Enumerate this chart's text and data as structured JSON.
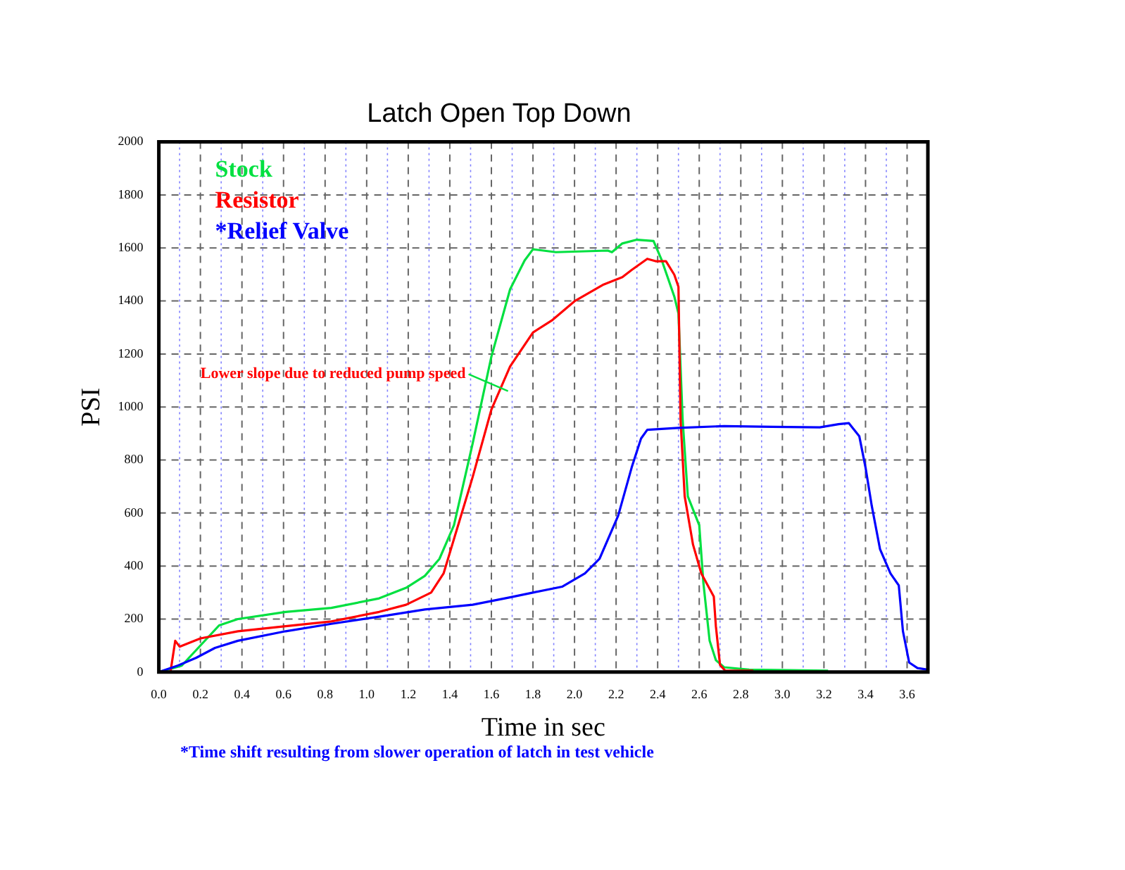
{
  "chart_data": {
    "type": "line",
    "title": "Latch Open Top Down",
    "xlabel": "Time in sec",
    "ylabel": "PSI",
    "annotations": [
      {
        "text": "Lower slope due to reduced pump speed",
        "x": 1.68,
        "y": 1060
      },
      "*Time shift resulting from slower operation of latch in test vehicle"
    ],
    "legend": "top left",
    "grid": true,
    "marker": "none",
    "line_style": "solid",
    "xlim": [
      0,
      3.7
    ],
    "ylim": [
      0,
      2000
    ],
    "xticks": [
      {
        "value": 0,
        "label": "0.0"
      },
      {
        "value": 0.1,
        "label": null
      },
      0.2,
      {
        "value": 0.3,
        "label": null
      },
      0.4,
      {
        "value": 0.5,
        "label": null
      },
      0.6,
      {
        "value": 0.7,
        "label": null
      },
      0.8,
      {
        "value": 0.9,
        "label": null
      },
      {
        "value": 1,
        "label": "1.0"
      },
      {
        "value": 1.1,
        "label": null
      },
      1.2,
      {
        "value": 1.3,
        "label": null
      },
      1.4,
      {
        "value": 1.5,
        "label": null
      },
      1.6,
      {
        "value": 1.7,
        "label": null
      },
      1.8,
      {
        "value": 1.9,
        "label": null
      },
      {
        "value": 2,
        "label": "2.0"
      },
      {
        "value": 2.1,
        "label": null
      },
      2.2,
      {
        "value": 2.3,
        "label": null
      },
      2.4,
      {
        "value": 2.5,
        "label": null
      },
      2.6,
      {
        "value": 2.7,
        "label": null
      },
      2.8,
      {
        "value": 2.9,
        "label": null
      },
      {
        "value": 3,
        "label": "3.0"
      },
      {
        "value": 3.1,
        "label": null
      },
      3.2,
      {
        "value": 3.3,
        "label": null
      },
      3.4,
      {
        "value": 3.5,
        "label": null
      },
      3.6
    ],
    "yticks": [
      0,
      200,
      400,
      600,
      800,
      1000,
      1200,
      1400,
      1600,
      1800,
      2000
    ],
    "series": [
      {
        "name": "Stock",
        "color": "#00e040",
        "x": [
          0,
          0.11,
          0.29,
          0.38,
          0.61,
          0.83,
          1.06,
          1.19,
          1.28,
          1.35,
          1.42,
          1.51,
          1.6,
          1.69,
          1.76,
          1.8,
          1.91,
          2.16,
          2.18,
          2.23,
          2.3,
          2.38,
          2.42,
          2.48,
          2.5,
          2.52,
          2.545,
          2.6,
          2.62,
          2.65,
          2.68,
          2.72,
          2.84,
          3.22
        ],
        "values": [
          0,
          24,
          176,
          200,
          227,
          242,
          278,
          318,
          363,
          427,
          554,
          863,
          1190,
          1444,
          1553,
          1595,
          1584,
          1590,
          1584,
          1617,
          1631,
          1626,
          1553,
          1417,
          1353,
          954,
          663,
          554,
          336,
          118,
          45,
          18,
          9,
          5
        ]
      },
      {
        "name": "Resistor",
        "color": "#ff0000",
        "x": [
          0,
          0.056,
          0.079,
          0.1,
          0.2,
          0.38,
          0.61,
          0.83,
          1.06,
          1.19,
          1.31,
          1.37,
          1.44,
          1.51,
          1.6,
          1.69,
          1.8,
          1.89,
          2.0,
          2.14,
          2.23,
          2.275,
          2.35,
          2.39,
          2.44,
          2.48,
          2.5,
          2.51,
          2.53,
          2.57,
          2.61,
          2.67,
          2.68,
          2.7,
          2.725,
          2.86
        ],
        "values": [
          0,
          0,
          118,
          96,
          127,
          154,
          173,
          191,
          227,
          254,
          300,
          372,
          554,
          736,
          990,
          1153,
          1281,
          1326,
          1399,
          1462,
          1490,
          1517,
          1559,
          1550,
          1550,
          1499,
          1453,
          954,
          663,
          481,
          372,
          285,
          173,
          27,
          5,
          5
        ]
      },
      {
        "name": "*Relief Valve",
        "color": "#0000ff",
        "x": [
          0,
          0.09,
          0.18,
          0.27,
          0.38,
          0.61,
          0.83,
          1.06,
          1.28,
          1.51,
          1.69,
          1.8,
          1.94,
          2.05,
          2.12,
          2.21,
          2.275,
          2.32,
          2.35,
          2.5,
          2.72,
          2.95,
          3.18,
          3.27,
          3.32,
          3.37,
          3.4,
          3.43,
          3.47,
          3.52,
          3.56,
          3.58,
          3.61,
          3.65,
          3.7
        ],
        "values": [
          0,
          24,
          54,
          91,
          118,
          154,
          182,
          209,
          236,
          254,
          282,
          300,
          322,
          372,
          427,
          590,
          772,
          881,
          914,
          921,
          928,
          925,
          923,
          935,
          939,
          890,
          772,
          627,
          463,
          372,
          327,
          154,
          36,
          15,
          9
        ]
      }
    ]
  }
}
